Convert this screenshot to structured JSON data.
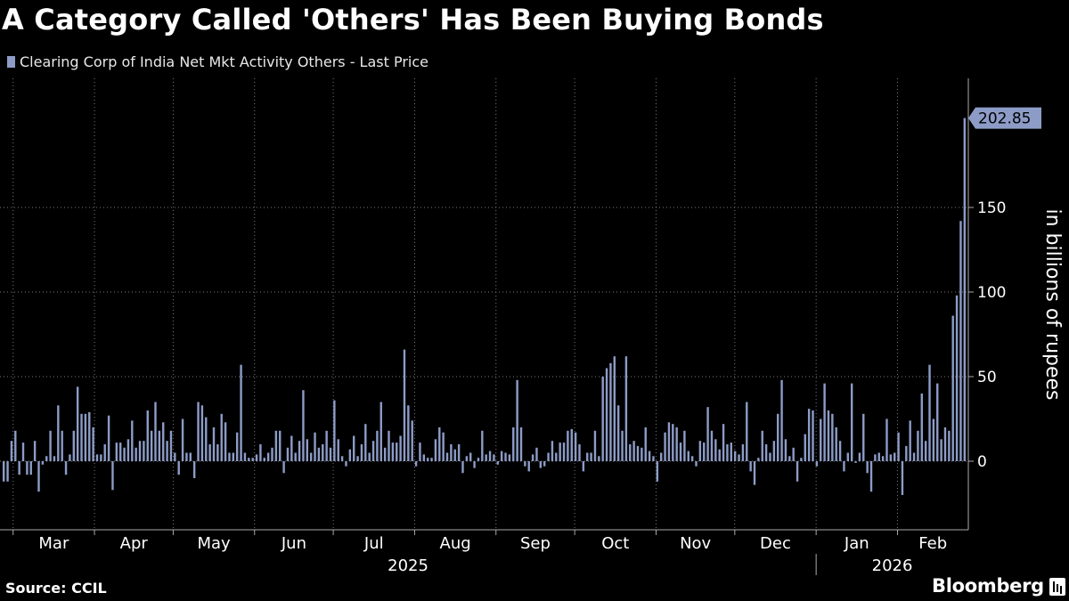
{
  "chart_data": {
    "type": "bar",
    "title": "A Category Called 'Others' Has Been Buying Bonds",
    "series_name": "Clearing Corp of India Net Mkt Activity Others - Last Price",
    "ylabel": "in billions of rupees",
    "ylim": [
      -40,
      220
    ],
    "yticks": [
      0,
      50,
      100,
      150
    ],
    "grid": true,
    "legend_position": "top-left",
    "last_value_label": "202.85",
    "bar_color": "#8d9cc7",
    "x_start": "2025-02-24",
    "x_end": "2026-02-28",
    "months": [
      {
        "label": "Mar",
        "date": "2025-03-01"
      },
      {
        "label": "Apr",
        "date": "2025-04-01"
      },
      {
        "label": "May",
        "date": "2025-05-01"
      },
      {
        "label": "Jun",
        "date": "2025-06-01"
      },
      {
        "label": "Jul",
        "date": "2025-07-01"
      },
      {
        "label": "Aug",
        "date": "2025-08-01"
      },
      {
        "label": "Sep",
        "date": "2025-09-01"
      },
      {
        "label": "Oct",
        "date": "2025-10-01"
      },
      {
        "label": "Nov",
        "date": "2025-11-01"
      },
      {
        "label": "Dec",
        "date": "2025-12-01"
      },
      {
        "label": "Jan",
        "date": "2026-01-01"
      },
      {
        "label": "Feb",
        "date": "2026-02-01"
      }
    ],
    "years": [
      {
        "label": "2025",
        "from": "2025-02-24",
        "to": "2026-01-01"
      },
      {
        "label": "2026",
        "from": "2026-01-01",
        "to": "2026-02-28"
      }
    ],
    "values": [
      -12,
      -12,
      12,
      18,
      -8,
      11,
      -8,
      -8,
      12,
      -18,
      -2,
      3,
      18,
      3,
      33,
      18,
      -8,
      4,
      18,
      44,
      28,
      28,
      29,
      20,
      4,
      4,
      10,
      27,
      -17,
      11,
      11,
      8,
      13,
      24,
      8,
      12,
      12,
      30,
      18,
      35,
      18,
      23,
      12,
      18,
      5,
      -8,
      25,
      5,
      5,
      -10,
      35,
      33,
      26,
      10,
      20,
      10,
      28,
      23,
      5,
      5,
      17,
      57,
      5,
      2,
      2,
      4,
      10,
      2,
      5,
      8,
      18,
      18,
      -7,
      8,
      15,
      5,
      12,
      42,
      13,
      5,
      17,
      8,
      10,
      18,
      8,
      36,
      13,
      3,
      -3,
      7,
      15,
      3,
      10,
      22,
      5,
      12,
      18,
      35,
      8,
      18,
      11,
      11,
      15,
      66,
      33,
      24,
      -3,
      11,
      4,
      2,
      2,
      13,
      20,
      17,
      5,
      10,
      7,
      10,
      -7,
      3,
      5,
      -4,
      2,
      18,
      4,
      6,
      4,
      -2,
      6,
      5,
      4,
      20,
      48,
      20,
      -3,
      -6,
      4,
      8,
      -4,
      -3,
      5,
      12,
      5,
      11,
      11,
      18,
      19,
      17,
      10,
      -6,
      5,
      5,
      18,
      3,
      50,
      55,
      58,
      62,
      33,
      18,
      62,
      10,
      12,
      9,
      8,
      20,
      6,
      3,
      -12,
      5,
      17,
      23,
      22,
      20,
      11,
      18,
      6,
      3,
      -3,
      12,
      11,
      32,
      18,
      13,
      7,
      22,
      10,
      11,
      6,
      4,
      10,
      35,
      -6,
      -14,
      2,
      18,
      10,
      5,
      12,
      28,
      48,
      13,
      3,
      8,
      -12,
      2,
      16,
      31,
      30,
      -3,
      25,
      46,
      30,
      28,
      20,
      12,
      -6,
      5,
      46,
      -1,
      5,
      28,
      -7,
      -18,
      4,
      5,
      3,
      25,
      4,
      5,
      17,
      -20,
      9,
      24,
      5,
      18,
      40,
      12,
      57,
      25,
      46,
      13,
      20,
      18,
      86,
      98,
      142,
      202.85
    ]
  },
  "footer": {
    "source": "Source: CCIL",
    "brand": "Bloomberg"
  }
}
